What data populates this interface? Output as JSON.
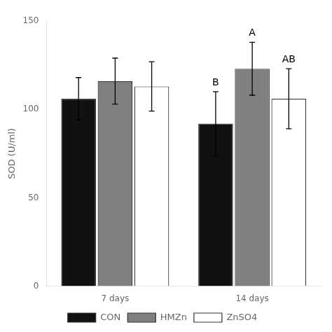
{
  "chart_data": {
    "type": "bar",
    "ylabel": "SOD (U/ml)",
    "categories": [
      "7 days",
      "14 days"
    ],
    "series": [
      {
        "name": "CON",
        "color": "#111111",
        "values": [
          106,
          92
        ],
        "errors": [
          12,
          18
        ]
      },
      {
        "name": "HMZn",
        "color": "#808080",
        "values": [
          116,
          123
        ],
        "errors": [
          13,
          15
        ]
      },
      {
        "name": "ZnSO4",
        "color": "#ffffff",
        "values": [
          113,
          106
        ],
        "errors": [
          14,
          17
        ]
      }
    ],
    "annotations": [
      {
        "text": "B",
        "category": "14 days",
        "series": "CON"
      },
      {
        "text": "A",
        "category": "14 days",
        "series": "HMZn"
      },
      {
        "text": "AB",
        "category": "14 days",
        "series": "ZnSO4"
      }
    ],
    "ylim": [
      0,
      150
    ],
    "yticks": [
      0,
      50,
      100,
      150
    ],
    "grid": false,
    "legend": "bottom"
  }
}
